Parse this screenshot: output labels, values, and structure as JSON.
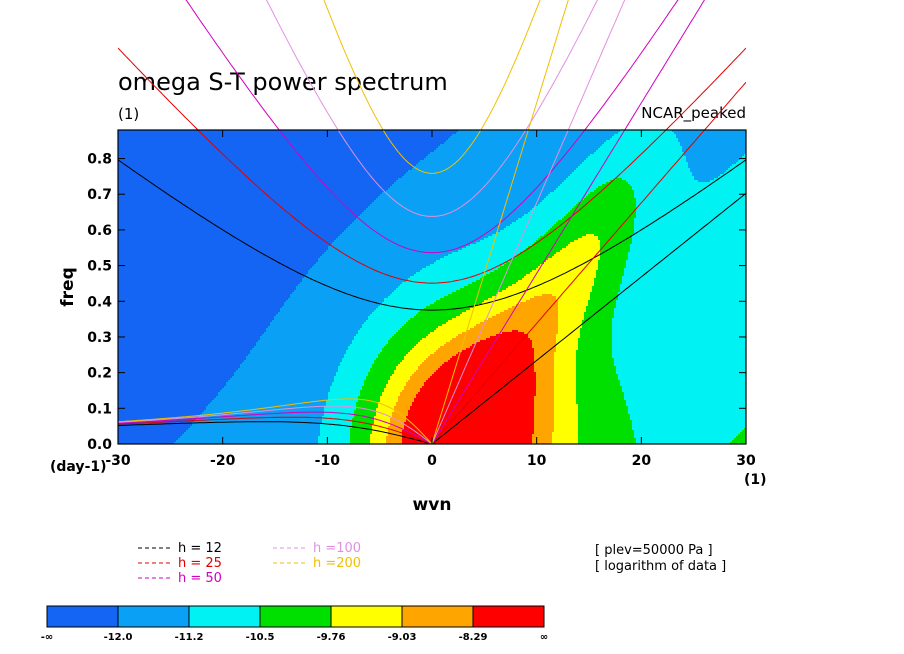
{
  "chart_data": {
    "type": "heatmap",
    "title": "omega S-T power spectrum",
    "title_units": "(1)",
    "dataset": "NCAR_peaked",
    "xlabel": "wvn",
    "ylabel": "freq",
    "x_units": "(1)",
    "y_units": "(day-1)",
    "xlim": [
      -30,
      30
    ],
    "ylim": [
      0,
      0.88
    ],
    "x_ticks": [
      "-30",
      "-20",
      "-10",
      "0",
      "10",
      "20",
      "30"
    ],
    "y_ticks": [
      "0.0",
      "0.1",
      "0.2",
      "0.3",
      "0.4",
      "0.5",
      "0.6",
      "0.7",
      "0.8"
    ],
    "info": [
      "[ plev=50000 Pa ]",
      "[ logarithm of data ]"
    ],
    "colorbar": {
      "labels": [
        "-∞",
        "-12.0",
        "-11.2",
        "-10.5",
        "-9.76",
        "-9.03",
        "-8.29",
        "∞"
      ],
      "colors": [
        "#1565f5",
        "#0aa0f5",
        "#00f2f2",
        "#00e000",
        "#ffff00",
        "#ffa500",
        "#ff0000"
      ]
    },
    "field": {
      "levels": [
        -12.0,
        -11.2,
        -10.5,
        -9.76,
        -9.03,
        -8.29
      ],
      "description": "log power, peaked near wvn 0-5, freq 0-0.1"
    },
    "dispersion_curves": [
      {
        "name": "h = 12",
        "h": 12,
        "color": "#000000"
      },
      {
        "name": "h = 25",
        "h": 25,
        "color": "#e00000"
      },
      {
        "name": "h = 50",
        "h": 50,
        "color": "#d000c0"
      },
      {
        "name": "h =100",
        "h": 100,
        "color": "#e090e0"
      },
      {
        "name": "h =200",
        "h": 200,
        "color": "#f0c000"
      }
    ]
  }
}
